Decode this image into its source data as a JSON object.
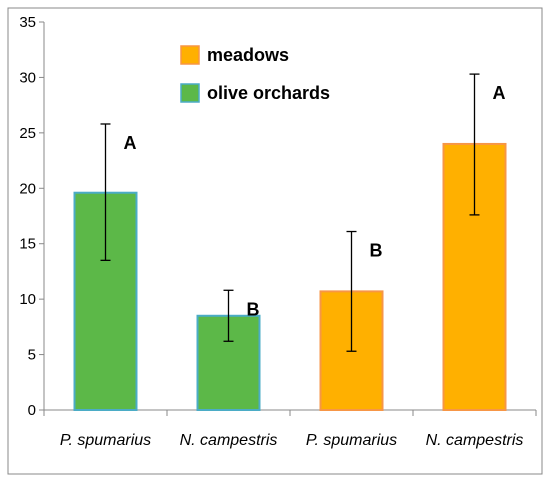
{
  "chart_data": {
    "type": "bar",
    "title": "",
    "xlabel": "",
    "ylabel": "",
    "ylim": [
      0,
      35
    ],
    "yticks": [
      0,
      5,
      10,
      15,
      20,
      25,
      30,
      35
    ],
    "grid": false,
    "legend_position": "top-center",
    "legend": [
      {
        "name": "meadows",
        "color": "#FFB000"
      },
      {
        "name": "olive orchards",
        "color": "#5CB848"
      }
    ],
    "categories": [
      "P. spumarius",
      "N. campestris",
      "P. spumarius",
      "N. campestris"
    ],
    "bars": [
      {
        "label": "P. spumarius",
        "group": "olive orchards",
        "value": 19.6,
        "err_low": 13.5,
        "err_high": 25.8,
        "letter": "A",
        "fill": "#5CB848",
        "stroke": "#4BACC6"
      },
      {
        "label": "N. campestris",
        "group": "olive orchards",
        "value": 8.5,
        "err_low": 6.2,
        "err_high": 10.8,
        "letter": "B",
        "fill": "#5CB848",
        "stroke": "#4BACC6"
      },
      {
        "label": "P. spumarius",
        "group": "meadows",
        "value": 10.7,
        "err_low": 5.3,
        "err_high": 16.1,
        "letter": "B",
        "fill": "#FFB000",
        "stroke": "#F79646"
      },
      {
        "label": "N. campestris",
        "group": "meadows",
        "value": 24.0,
        "err_low": 17.6,
        "err_high": 30.3,
        "letter": "A",
        "fill": "#FFB000",
        "stroke": "#F79646"
      }
    ]
  }
}
